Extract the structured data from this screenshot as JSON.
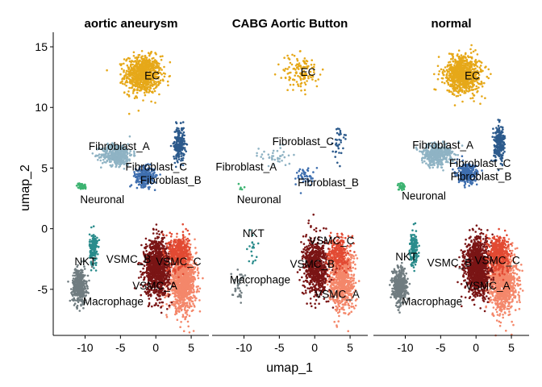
{
  "chart_data": {
    "type": "scatter",
    "xlabel": "umap_1",
    "ylabel": "umap_2",
    "xlim": [
      -14.5,
      7.5
    ],
    "ylim": [
      -8.8,
      16.2
    ],
    "x_ticks": [
      -10,
      -5,
      0,
      5
    ],
    "y_ticks": [
      -5,
      0,
      5,
      10,
      15
    ],
    "facets": [
      "aortic aneurysm",
      "CABG Aortic Button",
      "normal"
    ],
    "clusters": [
      {
        "name": "EC",
        "color": "#E6A819",
        "cx": [
          -1.8,
          -2.0,
          -1.8
        ],
        "cy": [
          12.7,
          12.9,
          12.7
        ],
        "sx": 2.3,
        "sy": 1.4,
        "n": [
          800,
          130,
          800
        ]
      },
      {
        "name": "Fibroblast_A",
        "color": "#8FB3C4",
        "cx": [
          -5.5,
          -5.5,
          -5.5
        ],
        "cy": [
          6.1,
          6.0,
          6.1
        ],
        "sx": 2.0,
        "sy": 0.8,
        "n": [
          420,
          40,
          420
        ]
      },
      {
        "name": "Fibroblast_B",
        "color": "#3F6FAF",
        "cx": [
          -1.5,
          -1.5,
          -1.2
        ],
        "cy": [
          4.3,
          4.3,
          4.5
        ],
        "sx": 1.2,
        "sy": 0.7,
        "n": [
          300,
          45,
          300
        ]
      },
      {
        "name": "Fibroblast_C",
        "color": "#2C5A8C",
        "cx": [
          3.3,
          3.3,
          3.3
        ],
        "cy": [
          7.0,
          7.2,
          7.0
        ],
        "sx": 0.7,
        "sy": 1.3,
        "n": [
          220,
          35,
          220
        ]
      },
      {
        "name": "Neuronal",
        "color": "#3CB371",
        "cx": [
          -10.5,
          -10.5,
          -10.5
        ],
        "cy": [
          3.5,
          3.5,
          3.5
        ],
        "sx": 0.6,
        "sy": 0.25,
        "n": [
          40,
          5,
          40
        ]
      },
      {
        "name": "NKT",
        "color": "#2A8C8C",
        "cx": [
          -8.8,
          -8.8,
          -8.8
        ],
        "cy": [
          -1.7,
          -1.7,
          -1.7
        ],
        "sx": 0.5,
        "sy": 1.2,
        "n": [
          160,
          18,
          160
        ]
      },
      {
        "name": "Macrophage",
        "color": "#707C80",
        "cx": [
          -10.8,
          -10.8,
          -10.8
        ],
        "cy": [
          -4.7,
          -4.5,
          -4.7
        ],
        "sx": 0.9,
        "sy": 1.3,
        "n": [
          420,
          35,
          420
        ]
      },
      {
        "name": "VSMC_A",
        "color": "#F4876A",
        "cx": [
          3.8,
          3.8,
          3.8
        ],
        "cy": [
          -4.3,
          -4.3,
          -4.3
        ],
        "sx": 1.7,
        "sy": 2.2,
        "n": [
          1100,
          700,
          1100
        ]
      },
      {
        "name": "VSMC_B",
        "color": "#7A1515",
        "cx": [
          0.2,
          0.2,
          0.2
        ],
        "cy": [
          -3.2,
          -3.2,
          -3.2
        ],
        "sx": 1.6,
        "sy": 2.1,
        "n": [
          1100,
          700,
          1100
        ]
      },
      {
        "name": "VSMC_C",
        "color": "#E24A33",
        "cx": [
          3.3,
          3.3,
          3.3
        ],
        "cy": [
          -2.0,
          -2.0,
          -2.0
        ],
        "sx": 1.3,
        "sy": 1.3,
        "n": [
          400,
          250,
          400
        ]
      }
    ],
    "labels": [
      [
        {
          "text": "EC",
          "x": -1.6,
          "y": 12.3
        },
        {
          "text": "Fibroblast_A",
          "x": -9.5,
          "y": 6.5
        },
        {
          "text": "Fibroblast_C",
          "x": -4.3,
          "y": 4.8
        },
        {
          "text": "Fibroblast_B",
          "x": -2.2,
          "y": 3.7
        },
        {
          "text": "Neuronal",
          "x": -10.7,
          "y": 2.1
        },
        {
          "text": "NKT",
          "x": -11.5,
          "y": -3.0
        },
        {
          "text": "VSMC_B",
          "x": -7.0,
          "y": -2.8
        },
        {
          "text": "VSMC_C",
          "x": 0.0,
          "y": -3.0
        },
        {
          "text": "VSMC_A",
          "x": -3.3,
          "y": -5.0
        },
        {
          "text": "Macrophage",
          "x": -10.3,
          "y": -6.3
        }
      ],
      [
        {
          "text": "EC",
          "x": -2.0,
          "y": 12.6
        },
        {
          "text": "Fibroblast_C",
          "x": -6.0,
          "y": 6.9
        },
        {
          "text": "Fibroblast_A",
          "x": -14.0,
          "y": 4.8
        },
        {
          "text": "Fibroblast_B",
          "x": -2.4,
          "y": 3.5
        },
        {
          "text": "Neuronal",
          "x": -11.0,
          "y": 2.1
        },
        {
          "text": "NKT",
          "x": -10.2,
          "y": -0.7
        },
        {
          "text": "VSMC_C",
          "x": -0.8,
          "y": -1.3
        },
        {
          "text": "VSMC_B",
          "x": -3.5,
          "y": -3.2
        },
        {
          "text": "Macrophage",
          "x": -12.0,
          "y": -4.5
        },
        {
          "text": "VSMC_A",
          "x": 0.0,
          "y": -5.7
        }
      ],
      [
        {
          "text": "EC",
          "x": -1.6,
          "y": 12.3
        },
        {
          "text": "Fibroblast_A",
          "x": -9.0,
          "y": 6.6
        },
        {
          "text": "Fibroblast_C",
          "x": -3.8,
          "y": 5.1
        },
        {
          "text": "Fibroblast_B",
          "x": -3.6,
          "y": 4.0
        },
        {
          "text": "Neuronal",
          "x": -10.5,
          "y": 2.4
        },
        {
          "text": "NKT",
          "x": -11.4,
          "y": -2.6
        },
        {
          "text": "VSMC_B",
          "x": -6.9,
          "y": -3.1
        },
        {
          "text": "VSMC_C",
          "x": -0.2,
          "y": -2.9
        },
        {
          "text": "VSMC_A",
          "x": -1.5,
          "y": -5.0
        },
        {
          "text": "Macrophage",
          "x": -10.5,
          "y": -6.3
        }
      ]
    ]
  }
}
